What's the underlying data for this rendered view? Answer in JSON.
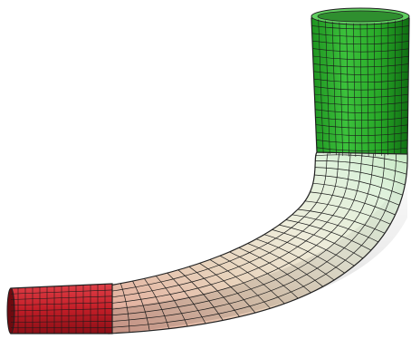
{
  "figure": {
    "subject": "meshed-bent-pipe",
    "segments": [
      {
        "id": "inlet-straight",
        "color": "#c8202a"
      },
      {
        "id": "bend",
        "color_start": "#e6b3a8",
        "color_mid": "#ece8d6",
        "color_end": "#d8f0d8"
      },
      {
        "id": "outlet-straight",
        "color": "#22a324"
      }
    ],
    "mesh_line_color": "#1a1a1a",
    "background": "#ffffff"
  }
}
